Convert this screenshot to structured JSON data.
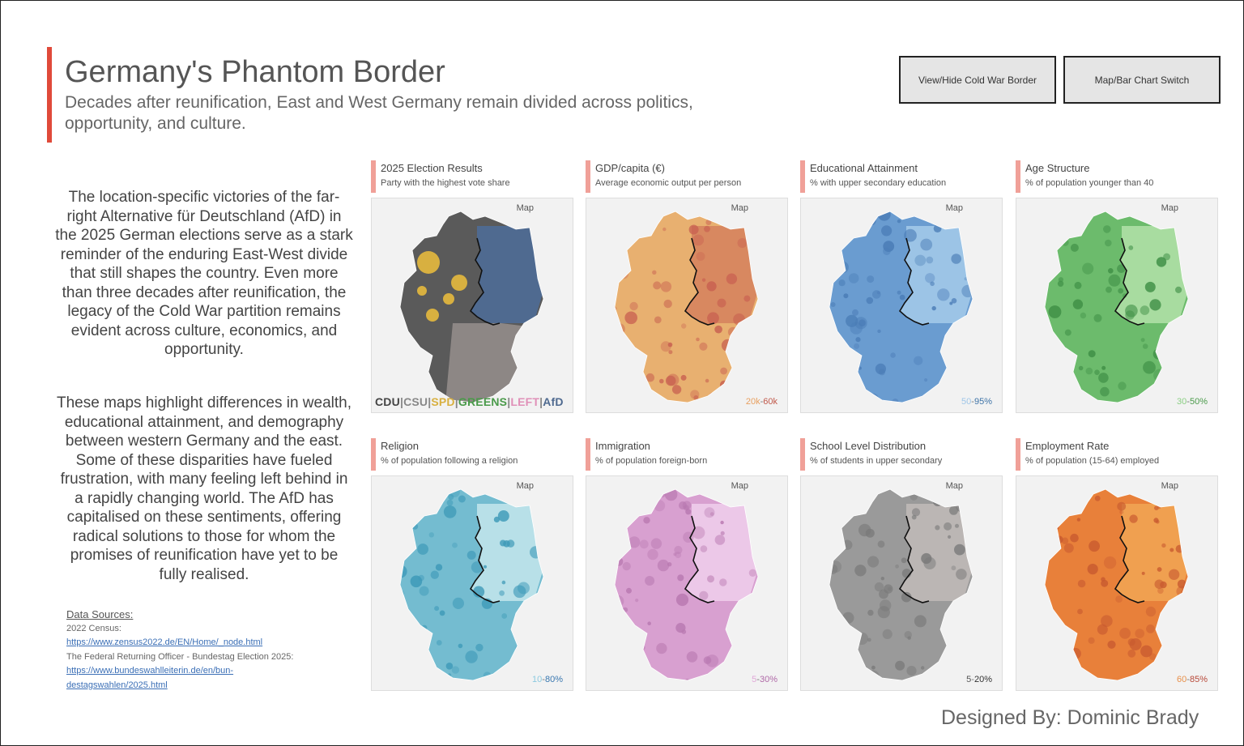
{
  "header": {
    "title": "Germany's Phantom Border",
    "subtitle": "Decades after reunification, East and West Germany remain divided across politics, opportunity, and culture."
  },
  "buttons": {
    "border_toggle": "View/Hide Cold War Border",
    "chart_switch": "Map/Bar Chart Switch"
  },
  "story": {
    "p1": "The location-specific victories of the far-right Alternative für Deutschland (AfD) in the 2025 German elections serve as a stark reminder of the enduring East-West divide that still shapes the country. Even more than three decades after reunification, the legacy of the Cold War partition remains evident across culture, economics, and opportunity.",
    "p2": "These maps highlight differences in wealth, educational attainment, and demography between western Germany and the east. Some of these disparities have fueled frustration, with many feeling left behind in a rapidly changing world. The AfD has capitalised on these sentiments, offering radical solutions to those for whom the promises of reunification have yet to be fully realised."
  },
  "sources": {
    "heading": "Data Sources:",
    "census_label": "2022 Census:",
    "census_url": "https://www.zensus2022.de/EN/Home/_node.html",
    "election_label": "The Federal Returning Officer - Bundestag Election 2025:",
    "election_url_1": "https://www.bundeswahlleiterin.de/en/bun-",
    "election_url_2": "destagswahlen/2025.html"
  },
  "map_label": "Map",
  "panels": [
    {
      "title": "2025 Election Results",
      "subtitle": "Party with the highest vote share",
      "range_low": "",
      "range_high": "",
      "low_color": "#777777",
      "high_color": "#777777",
      "palette": [
        "#5a5a5a",
        "#4f6a90"
      ]
    },
    {
      "title": "GDP/capita (€)",
      "subtitle": "Average economic output per person",
      "range_low": "20k",
      "range_high": "60k",
      "low_color": "#e8a060",
      "high_color": "#c0584a",
      "palette": [
        "#e8b070",
        "#d88860",
        "#c86050"
      ]
    },
    {
      "title": "Educational Attainment",
      "subtitle": "% with upper secondary education",
      "range_low": "50",
      "range_high": "95%",
      "low_color": "#9fc6e8",
      "high_color": "#3f74a8",
      "palette": [
        "#6a9cd0",
        "#9cc4e6",
        "#4a7cb6"
      ]
    },
    {
      "title": "Age Structure",
      "subtitle": "% of population younger than 40",
      "range_low": "30",
      "range_high": "50%",
      "low_color": "#8ccf84",
      "high_color": "#4a9a4a",
      "palette": [
        "#6cbb6c",
        "#a8dca0",
        "#3f8f46"
      ]
    },
    {
      "title": "Religion",
      "subtitle": "% of population following a religion",
      "range_low": "10",
      "range_high": "80%",
      "low_color": "#8ccae0",
      "high_color": "#3a78b0",
      "palette": [
        "#74bcd0",
        "#b8e0e8",
        "#3e9ab8"
      ]
    },
    {
      "title": "Immigration",
      "subtitle": "% of population foreign-born",
      "range_low": "5",
      "range_high": "30%",
      "low_color": "#e0a8d8",
      "high_color": "#b06aa8",
      "palette": [
        "#d8a0d0",
        "#ecc8e8",
        "#b878b0"
      ]
    },
    {
      "title": "School Level Distribution",
      "subtitle": "% of students in upper secondary",
      "range_low": "5",
      "range_high": "20%",
      "low_color": "#555555",
      "high_color": "#333333",
      "palette": [
        "#9a9a9a",
        "#bbb6b4",
        "#7a7a7a"
      ]
    },
    {
      "title": "Employment Rate",
      "subtitle": "% of population (15-64) employed",
      "range_low": "60",
      "range_high": "85%",
      "low_color": "#e8904a",
      "high_color": "#b84a3a",
      "palette": [
        "#e8803a",
        "#f0a050",
        "#c85a30"
      ]
    }
  ],
  "legend": {
    "cdu": "CDU",
    "csu": "CSU",
    "spd": "SPD",
    "greens": "GREENS",
    "left": "LEFT",
    "afd": "AfD",
    "sep": "|",
    "cdu_color": "#444444",
    "csu_color": "#888888",
    "spd_color": "#d8b040",
    "greens_color": "#4a9a4a",
    "left_color": "#e090b8",
    "afd_color": "#4f6a90"
  },
  "signature": "Designed By: Dominic Brady"
}
